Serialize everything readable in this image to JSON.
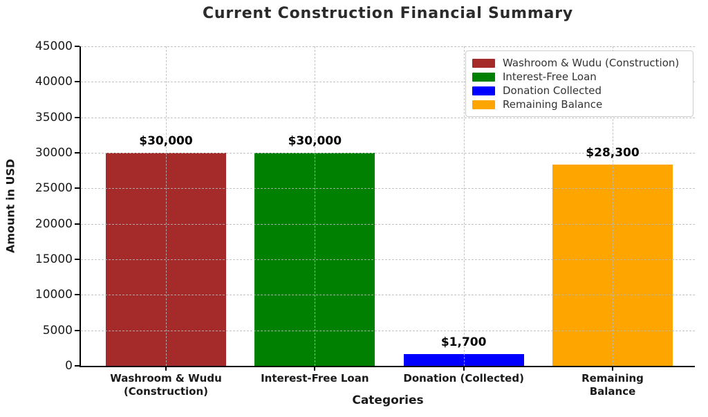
{
  "title": "Current Construction Financial Summary",
  "chart_data": {
    "type": "bar",
    "categories": [
      "Washroom & Wudu\n(Construction)",
      "Interest-Free Loan",
      "Donation (Collected)",
      "Remaining Balance"
    ],
    "values": [
      30000,
      30000,
      1700,
      28300
    ],
    "value_labels": [
      "$30,000",
      "$30,000",
      "$1,700",
      "$28,300"
    ],
    "bar_colors": [
      "#A52A2A",
      "#008000",
      "#0000FF",
      "#FFA500"
    ],
    "legend_entries": [
      "Washroom & Wudu (Construction)",
      "Interest-Free Loan",
      "Donation Collected",
      "Remaining Balance"
    ],
    "legend_position": "upper right",
    "xlabel": "Categories",
    "ylabel": "Amount in USD",
    "ylim": [
      0,
      45000
    ],
    "yticks": [
      0,
      5000,
      10000,
      15000,
      20000,
      25000,
      30000,
      35000,
      40000,
      45000
    ],
    "grid": true,
    "grid_style": "dashed"
  },
  "colors": {
    "grid": "#b9b9b9",
    "spine": "#000000",
    "text": "#1a1a1a",
    "title": "#2b2b2b",
    "legend_border": "#cccccc",
    "background": "#ffffff"
  }
}
